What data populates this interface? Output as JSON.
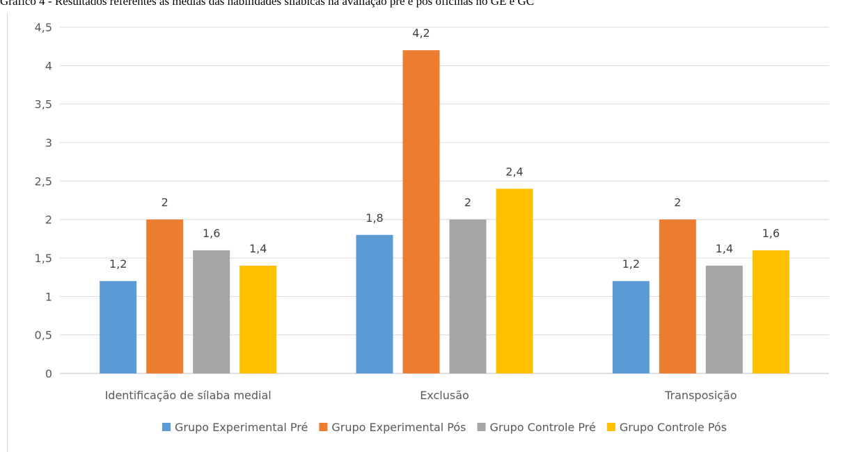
{
  "title": "Gráfico 4 - Resultados referentes às médias das habilidades silábicas na avaliação pré e pós oficinas no GE e GC",
  "chart_data": {
    "type": "bar",
    "categories": [
      "Identificação de sílaba medial",
      "Exclusão",
      "Transposição"
    ],
    "series": [
      {
        "name": "Grupo Experimental Pré",
        "color": "#5b9bd5",
        "values": [
          1.2,
          1.8,
          1.2
        ],
        "labels": [
          "1,2",
          "1,8",
          "1,2"
        ]
      },
      {
        "name": "Grupo Experimental Pós",
        "color": "#ed7d31",
        "values": [
          2,
          4.2,
          2
        ],
        "labels": [
          "2",
          "4,2",
          "2"
        ]
      },
      {
        "name": "Grupo Controle Pré",
        "color": "#a5a5a5",
        "values": [
          1.6,
          2,
          1.4
        ],
        "labels": [
          "1,6",
          "2",
          "1,4"
        ]
      },
      {
        "name": "Grupo Controle Pós",
        "color": "#ffc000",
        "values": [
          1.4,
          2.4,
          1.6
        ],
        "labels": [
          "1,4",
          "2,4",
          "1,6"
        ]
      }
    ],
    "yticks": [
      0,
      0.5,
      1,
      1.5,
      2,
      2.5,
      3,
      3.5,
      4,
      4.5
    ],
    "ytick_labels": [
      "0",
      "0,5",
      "1",
      "1,5",
      "2",
      "2,5",
      "3",
      "3,5",
      "4",
      "4,5"
    ],
    "ylim": [
      0,
      4.5
    ],
    "grid": true,
    "legend_position": "bottom"
  }
}
